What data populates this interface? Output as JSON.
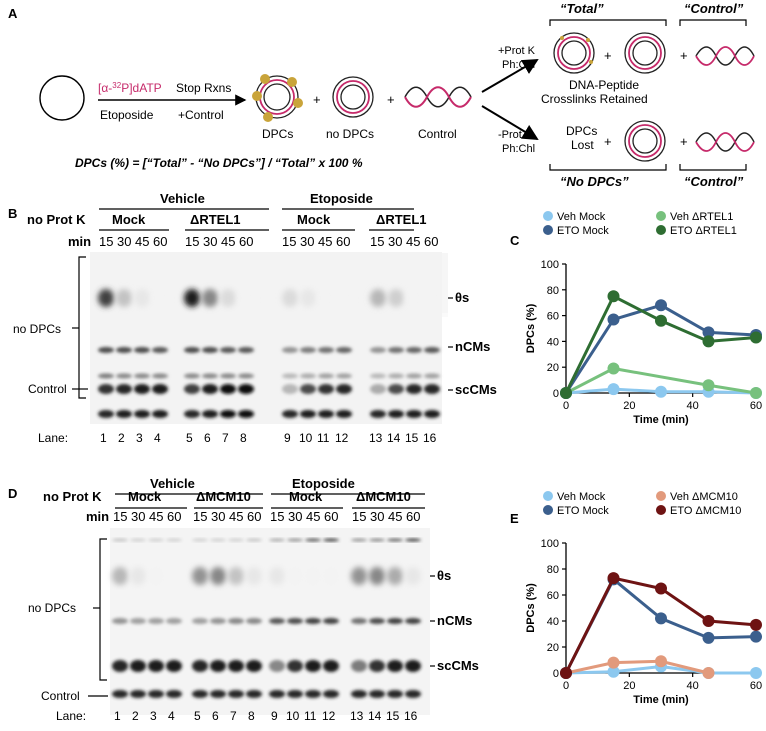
{
  "panels": {
    "A": "A",
    "B": "B",
    "C": "C",
    "D": "D",
    "E": "E"
  },
  "schematic": {
    "label_dntp_pre": "[α-",
    "label_dntp_sup": "32",
    "label_dntp_post": "P]dATP",
    "label_etoposide": "Etoposide",
    "label_stop": "Stop Rxns",
    "label_plus_control": "+Control",
    "label_dpcs": "DPCs",
    "label_nodpcs": "no DPCs",
    "label_control": "Control",
    "plus": "+",
    "formula": "DPCs (%) = [“Total” - “No DPCs”] / “Total” x 100 %",
    "top_branch_line1": "+Prot K",
    "top_branch_line2": "Ph:Chl",
    "bottom_branch_line1": "-Prot K",
    "bottom_branch_line2": "Ph:Chl",
    "total_header": "“Total”",
    "control_header": "“Control”",
    "retained_line1": "DNA-Peptide",
    "retained_line2": "Crosslinks Retained",
    "lost_line1": "DPCs",
    "lost_line2": "Lost",
    "nodpcs_footer": "“No DPCs”",
    "control_footer": "“Control”"
  },
  "gel_b": {
    "treatment_left": "Vehicle",
    "treatment_right": "Etoposide",
    "row_label": "no Prot K",
    "min_label": "min",
    "groups": [
      "Mock",
      "ΔRTEL1",
      "Mock",
      "ΔRTEL1"
    ],
    "times": [
      "15",
      "30",
      "45",
      "60"
    ],
    "band_labels": [
      "θs",
      "nCMs",
      "scCMs"
    ],
    "left_bracket_label": "no DPCs",
    "control_label": "Control",
    "lane_label": "Lane:",
    "lanes": [
      "1",
      "2",
      "3",
      "4",
      "5",
      "6",
      "7",
      "8",
      "9",
      "10",
      "11",
      "12",
      "13",
      "14",
      "15",
      "16"
    ]
  },
  "gel_d": {
    "treatment_left": "Vehicle",
    "treatment_right": "Etoposide",
    "row_label": "no Prot K",
    "min_label": "min",
    "groups": [
      "Mock",
      "ΔMCM10",
      "Mock",
      "ΔMCM10"
    ],
    "times": [
      "15",
      "30",
      "45",
      "60"
    ],
    "band_labels": [
      "θs",
      "nCMs",
      "scCMs"
    ],
    "left_bracket_label": "no DPCs",
    "control_label": "Control",
    "lane_label": "Lane:",
    "lanes": [
      "1",
      "2",
      "3",
      "4",
      "5",
      "6",
      "7",
      "8",
      "9",
      "10",
      "11",
      "12",
      "13",
      "14",
      "15",
      "16"
    ]
  },
  "chart_data": [
    {
      "type": "line",
      "panel": "C",
      "xlabel": "Time (min)",
      "ylabel": "DPCs (%)",
      "xlim": [
        0,
        60
      ],
      "ylim": [
        0,
        100
      ],
      "xticks": [
        0,
        20,
        40,
        60
      ],
      "yticks": [
        0,
        20,
        40,
        60,
        80,
        100
      ],
      "legend_placement": "top",
      "series": [
        {
          "name": "Veh Mock",
          "color": "#8cc8ef",
          "points": [
            [
              0,
              0
            ],
            [
              15,
              3
            ],
            [
              30,
              1
            ],
            [
              45,
              1
            ],
            [
              60,
              0
            ]
          ]
        },
        {
          "name": "Veh ΔRTEL1",
          "color": "#77c17d",
          "points": [
            [
              0,
              0
            ],
            [
              15,
              19
            ],
            [
              45,
              6
            ],
            [
              60,
              0
            ]
          ]
        },
        {
          "name": "ETO Mock",
          "color": "#3b5f8d",
          "points": [
            [
              0,
              0
            ],
            [
              15,
              57
            ],
            [
              30,
              68
            ],
            [
              45,
              47
            ],
            [
              60,
              45
            ]
          ]
        },
        {
          "name": "ETO ΔRTEL1",
          "color": "#2e6d32",
          "points": [
            [
              0,
              0
            ],
            [
              15,
              75
            ],
            [
              30,
              56
            ],
            [
              45,
              40
            ],
            [
              60,
              43
            ]
          ]
        }
      ]
    },
    {
      "type": "line",
      "panel": "E",
      "xlabel": "Time (min)",
      "ylabel": "DPCs (%)",
      "xlim": [
        0,
        60
      ],
      "ylim": [
        0,
        100
      ],
      "xticks": [
        0,
        20,
        40,
        60
      ],
      "yticks": [
        0,
        20,
        40,
        60,
        80,
        100
      ],
      "legend_placement": "top",
      "series": [
        {
          "name": "Veh Mock",
          "color": "#8cc8ef",
          "points": [
            [
              0,
              0
            ],
            [
              15,
              1
            ],
            [
              30,
              5
            ],
            [
              45,
              0
            ],
            [
              60,
              0
            ]
          ]
        },
        {
          "name": "Veh ΔMCM10",
          "color": "#e29a7c",
          "points": [
            [
              0,
              0
            ],
            [
              15,
              8
            ],
            [
              30,
              9
            ],
            [
              45,
              0
            ]
          ]
        },
        {
          "name": "ETO Mock",
          "color": "#3b5f8d",
          "points": [
            [
              0,
              0
            ],
            [
              15,
              72
            ],
            [
              30,
              42
            ],
            [
              45,
              27
            ],
            [
              60,
              28
            ]
          ]
        },
        {
          "name": "ETO ΔMCM10",
          "color": "#6e1313",
          "points": [
            [
              0,
              0
            ],
            [
              15,
              73
            ],
            [
              30,
              65
            ],
            [
              45,
              40
            ],
            [
              60,
              37
            ]
          ]
        }
      ]
    }
  ]
}
